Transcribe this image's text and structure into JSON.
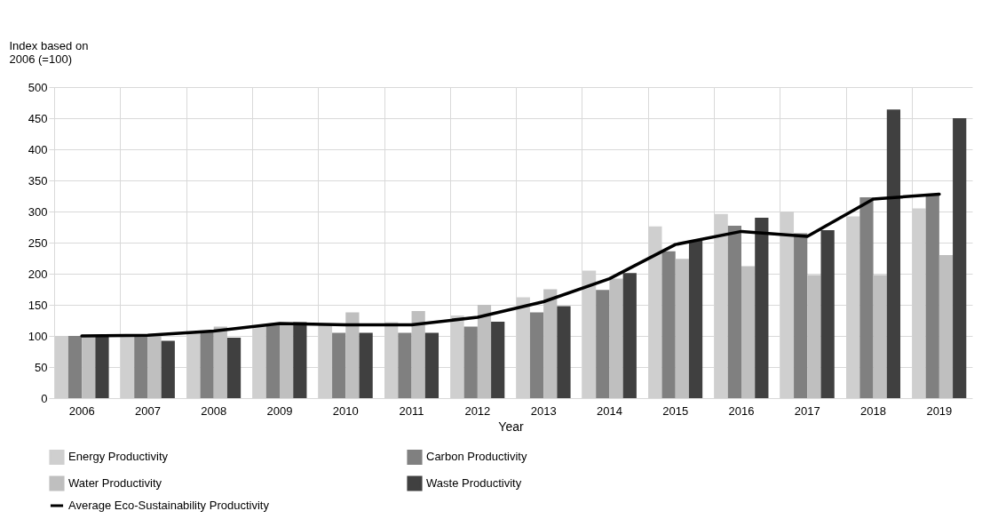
{
  "chart_data": {
    "type": "bar",
    "ylabel": "Index based on\n2006 (=100)",
    "xlabel": "Year",
    "categories": [
      "2006",
      "2007",
      "2008",
      "2009",
      "2010",
      "2011",
      "2012",
      "2013",
      "2014",
      "2015",
      "2016",
      "2017",
      "2018",
      "2019"
    ],
    "series": [
      {
        "name": "Energy Productivity",
        "color": "#cfcfcf",
        "values": [
          100,
          100,
          107,
          116,
          120,
          122,
          133,
          162,
          205,
          276,
          296,
          300,
          292,
          305
        ]
      },
      {
        "name": "Carbon Productivity",
        "color": "#808080",
        "values": [
          100,
          100,
          108,
          120,
          105,
          105,
          115,
          138,
          174,
          236,
          277,
          265,
          323,
          327
        ]
      },
      {
        "name": "Water Productivity",
        "color": "#bfbfbf",
        "values": [
          100,
          100,
          115,
          120,
          138,
          140,
          150,
          175,
          192,
          224,
          212,
          198,
          198,
          230
        ]
      },
      {
        "name": "Waste Productivity",
        "color": "#404040",
        "values": [
          100,
          92,
          97,
          122,
          105,
          105,
          123,
          148,
          201,
          253,
          290,
          270,
          464,
          450
        ]
      },
      {
        "name": "Average Eco-Sustainability Productivity",
        "color": "#000000",
        "type": "line",
        "values": [
          100,
          101,
          108,
          120,
          118,
          118,
          130,
          155,
          192,
          247,
          268,
          260,
          320,
          328
        ]
      }
    ],
    "ylim": [
      0,
      500
    ],
    "yticks": [
      0,
      50,
      100,
      150,
      200,
      250,
      300,
      350,
      400,
      450,
      500
    ],
    "grid": true,
    "legend": "bottom"
  }
}
